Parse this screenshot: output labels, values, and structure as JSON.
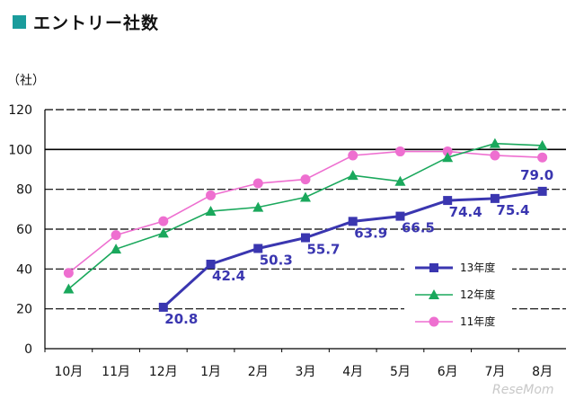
{
  "title": "エントリー社数",
  "colors": {
    "title_square": "#1a9c9c",
    "s13": "#3a36b0",
    "s12": "#1aa85c",
    "s11": "#ee6fd0"
  },
  "watermark": "ReseMom",
  "chart_data": {
    "type": "line",
    "ylabel": "（社）",
    "categories": [
      "10月",
      "11月",
      "12月",
      "1月",
      "2月",
      "3月",
      "4月",
      "5月",
      "6月",
      "7月",
      "8月"
    ],
    "ylim": [
      0,
      120
    ],
    "yticks": [
      0,
      20,
      40,
      60,
      80,
      100,
      120
    ],
    "grid": true,
    "legend_position": "right",
    "series": [
      {
        "name": "13年度",
        "marker": "square",
        "color": "#3a36b0",
        "values": [
          null,
          null,
          20.8,
          42.4,
          50.3,
          55.7,
          63.9,
          66.5,
          74.4,
          75.4,
          79.0
        ],
        "labels": [
          null,
          null,
          "20.8",
          "42.4",
          "50.3",
          "55.7",
          "63.9",
          "66.5",
          "74.4",
          "75.4",
          "79.0"
        ]
      },
      {
        "name": "12年度",
        "marker": "triangle",
        "color": "#1aa85c",
        "values": [
          30,
          50,
          58,
          69,
          71,
          76,
          87,
          84,
          96,
          103,
          102
        ]
      },
      {
        "name": "11年度",
        "marker": "circle",
        "color": "#ee6fd0",
        "values": [
          38,
          57,
          64,
          77,
          83,
          85,
          97,
          99,
          99,
          97,
          96
        ]
      }
    ]
  }
}
